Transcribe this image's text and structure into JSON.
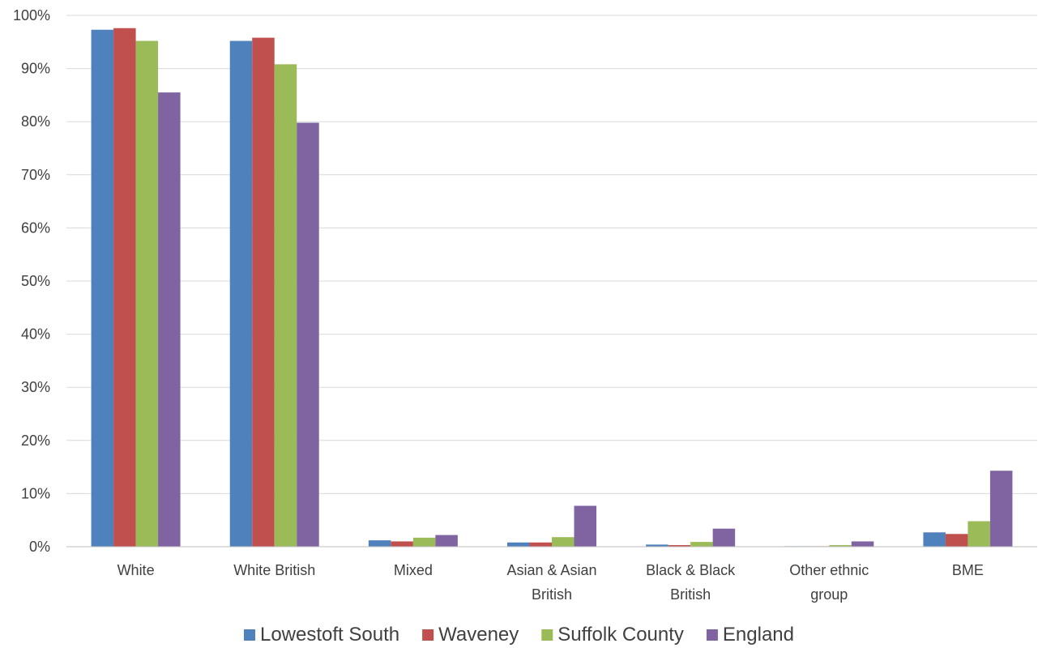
{
  "chart_data": {
    "type": "bar",
    "categories": [
      [
        "White"
      ],
      [
        "White British"
      ],
      [
        "Mixed"
      ],
      [
        "Asian & Asian",
        "British"
      ],
      [
        "Black & Black",
        "British"
      ],
      [
        "Other ethnic",
        "group"
      ],
      [
        "BME"
      ]
    ],
    "series": [
      {
        "name": "Lowestoft South",
        "color": "#4f81bd",
        "values": [
          97.3,
          95.2,
          1.2,
          0.8,
          0.4,
          0.1,
          2.7
        ]
      },
      {
        "name": "Waveney",
        "color": "#c0504d",
        "values": [
          97.6,
          95.8,
          1.0,
          0.8,
          0.3,
          0.1,
          2.4
        ]
      },
      {
        "name": "Suffolk County",
        "color": "#9bbb59",
        "values": [
          95.2,
          90.8,
          1.7,
          1.8,
          0.9,
          0.3,
          4.8
        ]
      },
      {
        "name": "England",
        "color": "#8064a2",
        "values": [
          85.5,
          79.8,
          2.2,
          7.7,
          3.4,
          1.0,
          14.3
        ]
      }
    ],
    "y_ticks": [
      "0%",
      "10%",
      "20%",
      "30%",
      "40%",
      "50%",
      "60%",
      "70%",
      "80%",
      "90%",
      "100%"
    ],
    "ylim": [
      0,
      100
    ],
    "grid": true,
    "legend_position": "bottom"
  }
}
